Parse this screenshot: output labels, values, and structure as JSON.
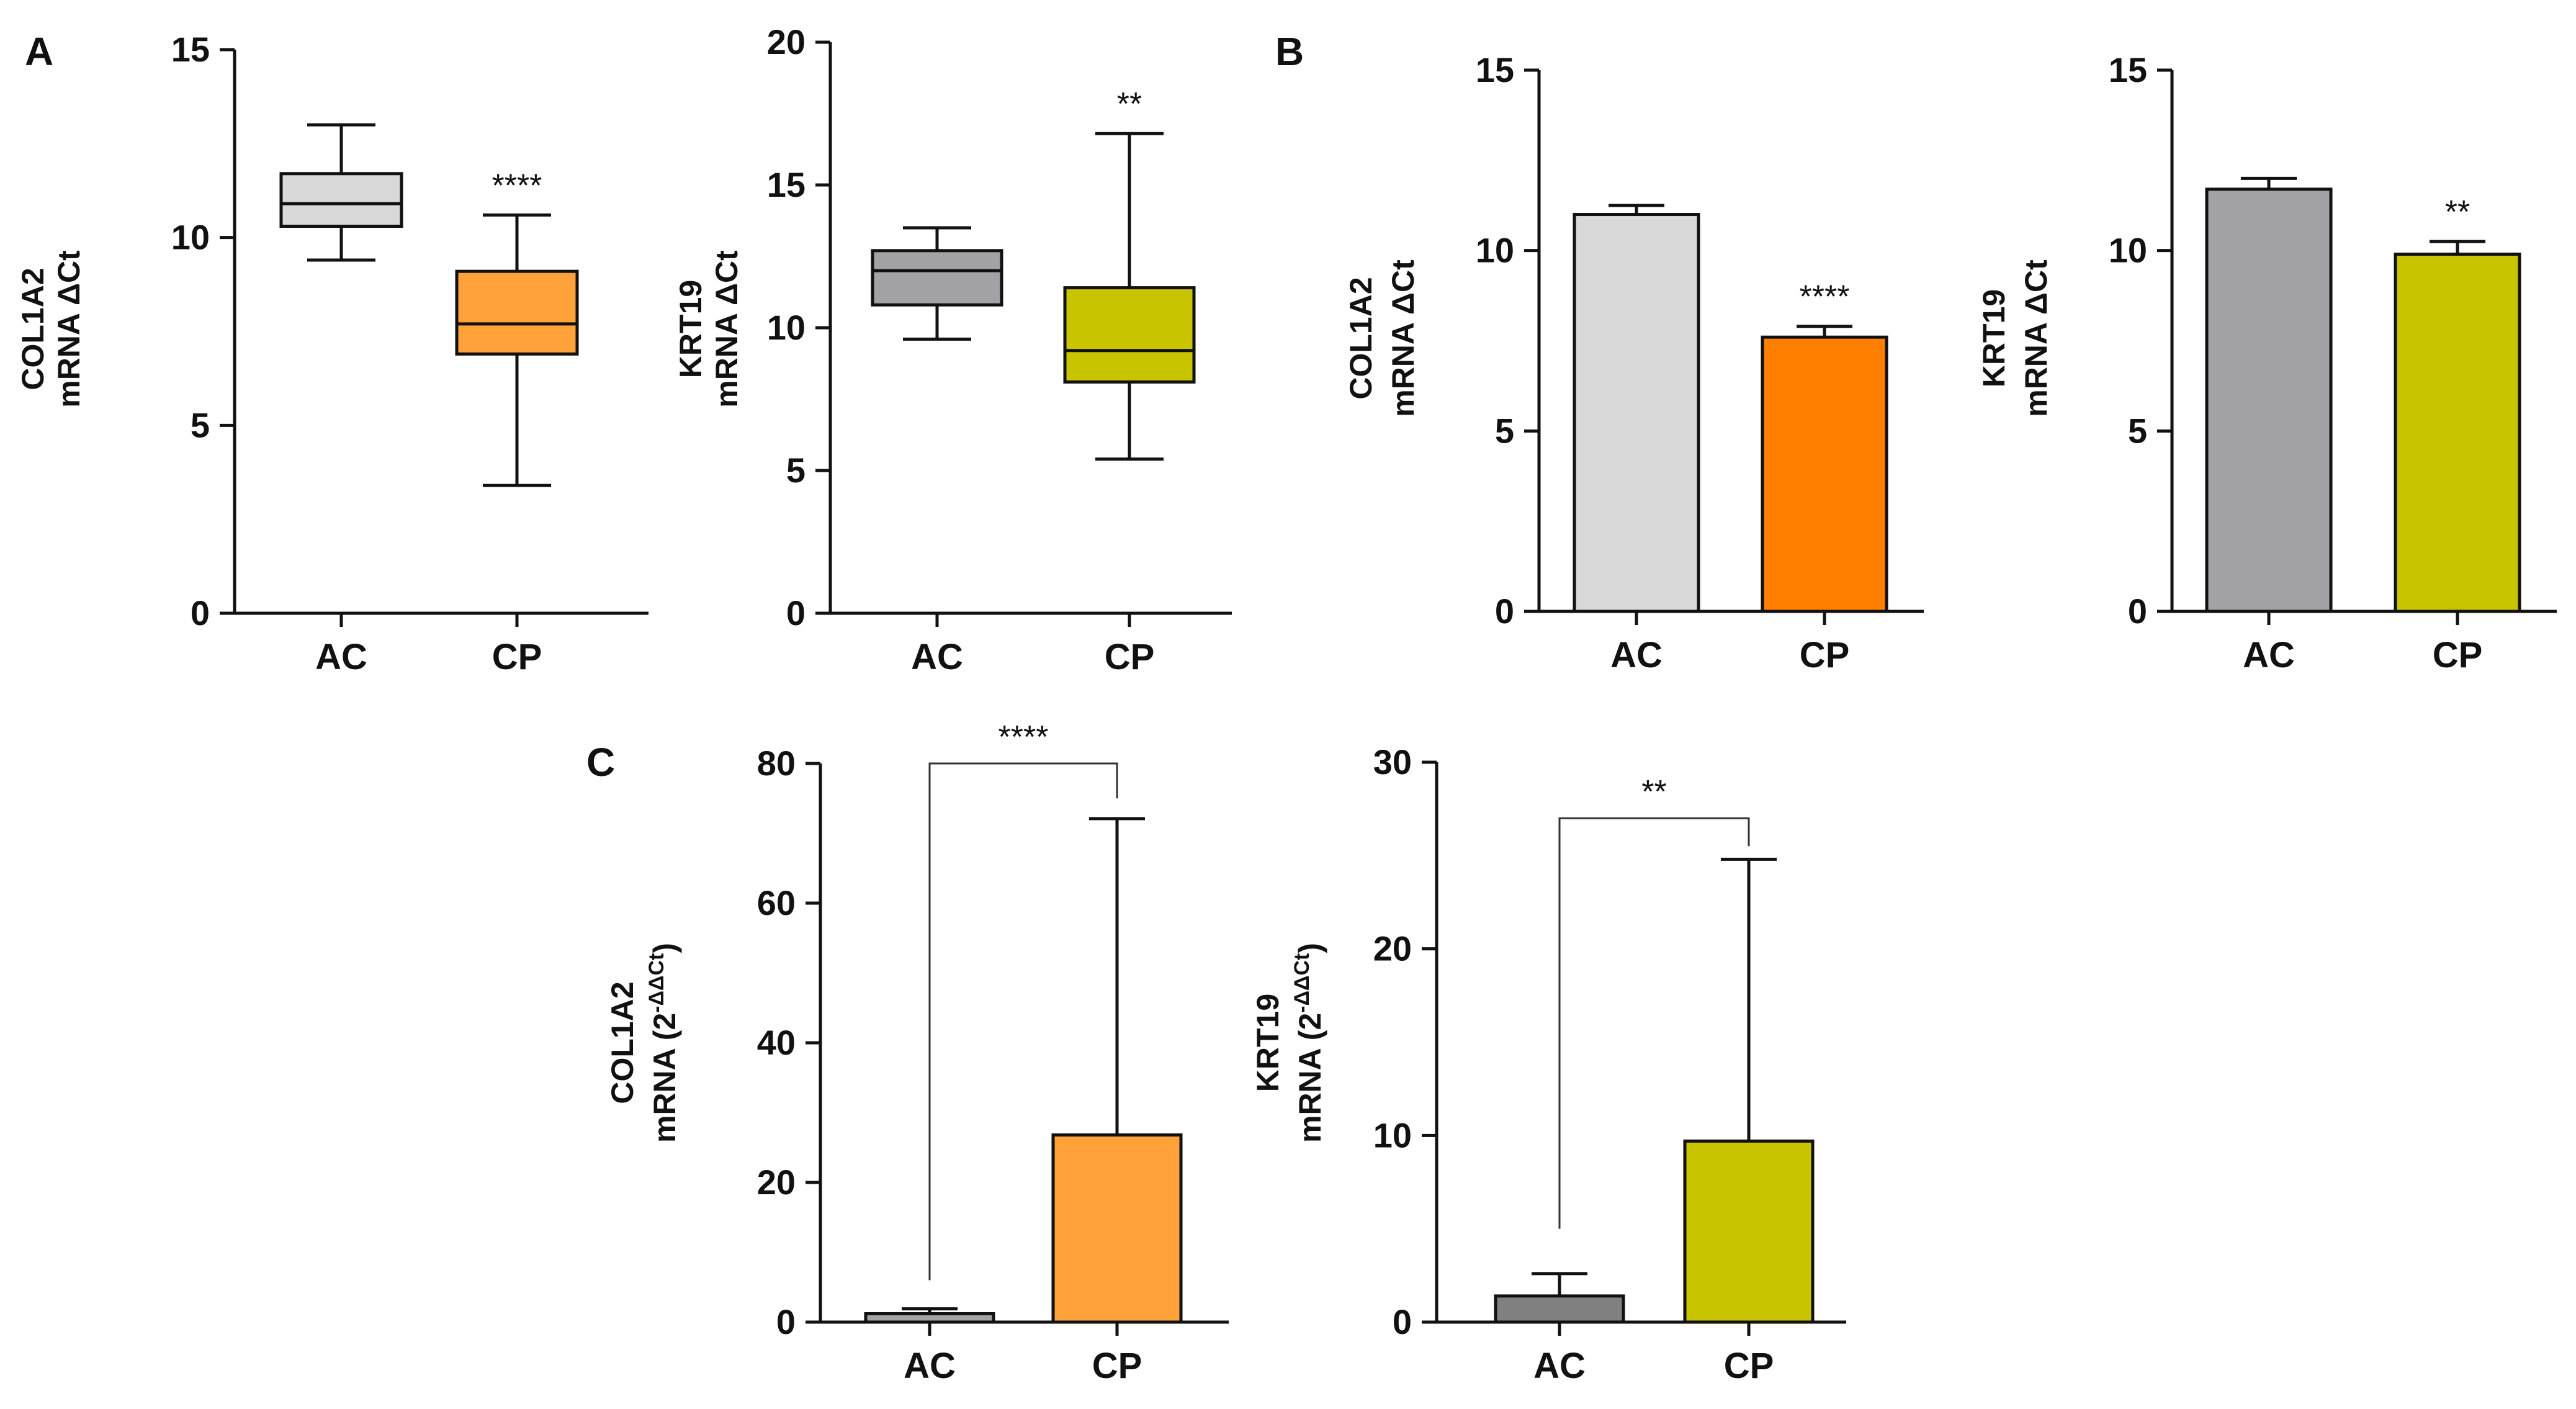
{
  "panels": {
    "A": "A",
    "B": "B",
    "C": "C"
  },
  "chart_data": [
    {
      "id": "a1",
      "panel": "A",
      "type": "box",
      "categories": [
        "AC",
        "CP"
      ],
      "ylabel": [
        "COL1A2",
        "mRNA ΔCt"
      ],
      "ylim": [
        0,
        15
      ],
      "yticks": [
        0,
        5,
        10,
        15
      ],
      "boxes": [
        {
          "category": "AC",
          "min": 9.4,
          "q1": 10.3,
          "median": 10.9,
          "q3": 11.7,
          "max": 13.0,
          "color": "#d9d9d9"
        },
        {
          "category": "CP",
          "min": 3.4,
          "q1": 6.9,
          "median": 7.7,
          "q3": 9.1,
          "max": 10.6,
          "color": "#ffa23a"
        }
      ],
      "annotations": [
        {
          "category": "CP",
          "text": "****"
        }
      ]
    },
    {
      "id": "a2",
      "panel": "A",
      "type": "box",
      "categories": [
        "AC",
        "CP"
      ],
      "ylabel": [
        "KRT19",
        "mRNA ΔCt"
      ],
      "ylim": [
        0,
        20
      ],
      "yticks": [
        0,
        5,
        10,
        15,
        20
      ],
      "boxes": [
        {
          "category": "AC",
          "min": 9.6,
          "q1": 10.8,
          "median": 12.0,
          "q3": 12.7,
          "max": 13.5,
          "color": "#a3a2a6"
        },
        {
          "category": "CP",
          "min": 5.4,
          "q1": 8.1,
          "median": 9.2,
          "q3": 11.4,
          "max": 16.8,
          "color": "#c8c400"
        }
      ],
      "annotations": [
        {
          "category": "CP",
          "text": "**"
        }
      ]
    },
    {
      "id": "b1",
      "panel": "B",
      "type": "bar",
      "categories": [
        "AC",
        "CP"
      ],
      "ylabel": [
        "COL1A2",
        "mRNA ΔCt"
      ],
      "ylim": [
        0,
        15
      ],
      "yticks": [
        0,
        5,
        10,
        15
      ],
      "values": [
        11.0,
        7.6
      ],
      "errors": [
        0.25,
        0.3
      ],
      "colors": [
        "#d9d9d9",
        "#ff8000"
      ],
      "annotations": [
        {
          "category": "CP",
          "text": "****"
        }
      ]
    },
    {
      "id": "b2",
      "panel": "B",
      "type": "bar",
      "categories": [
        "AC",
        "CP"
      ],
      "ylabel": [
        "KRT19",
        "mRNA ΔCt"
      ],
      "ylim": [
        0,
        15
      ],
      "yticks": [
        0,
        5,
        10,
        15
      ],
      "values": [
        11.7,
        9.9
      ],
      "errors": [
        0.3,
        0.35
      ],
      "colors": [
        "#a3a2a6",
        "#c8c400"
      ],
      "annotations": [
        {
          "category": "CP",
          "text": "**"
        }
      ]
    },
    {
      "id": "c1",
      "panel": "C",
      "type": "bar",
      "categories": [
        "AC",
        "CP"
      ],
      "ylabel": [
        "COL1A2",
        "mRNA (2^-ΔΔCt)"
      ],
      "ylim": [
        0,
        80
      ],
      "yticks": [
        0,
        20,
        40,
        60,
        80
      ],
      "values": [
        1.2,
        26.8
      ],
      "errors": [
        0.7,
        45.3
      ],
      "colors": [
        "#a3a2a6",
        "#ffa23a"
      ],
      "bracket": {
        "text": "****",
        "top": 80,
        "left_end": 6,
        "right_end": 75
      }
    },
    {
      "id": "c2",
      "panel": "C",
      "type": "bar",
      "categories": [
        "AC",
        "CP"
      ],
      "ylabel": [
        "KRT19",
        "mRNA (2^-ΔΔCt)"
      ],
      "ylim": [
        0,
        30
      ],
      "yticks": [
        0,
        10,
        20,
        30
      ],
      "values": [
        1.4,
        9.7
      ],
      "errors": [
        1.2,
        15.1
      ],
      "colors": [
        "#808080",
        "#c8c400"
      ],
      "bracket": {
        "text": "**",
        "top": 27,
        "left_end": 5,
        "right_end": 25.5
      }
    }
  ]
}
